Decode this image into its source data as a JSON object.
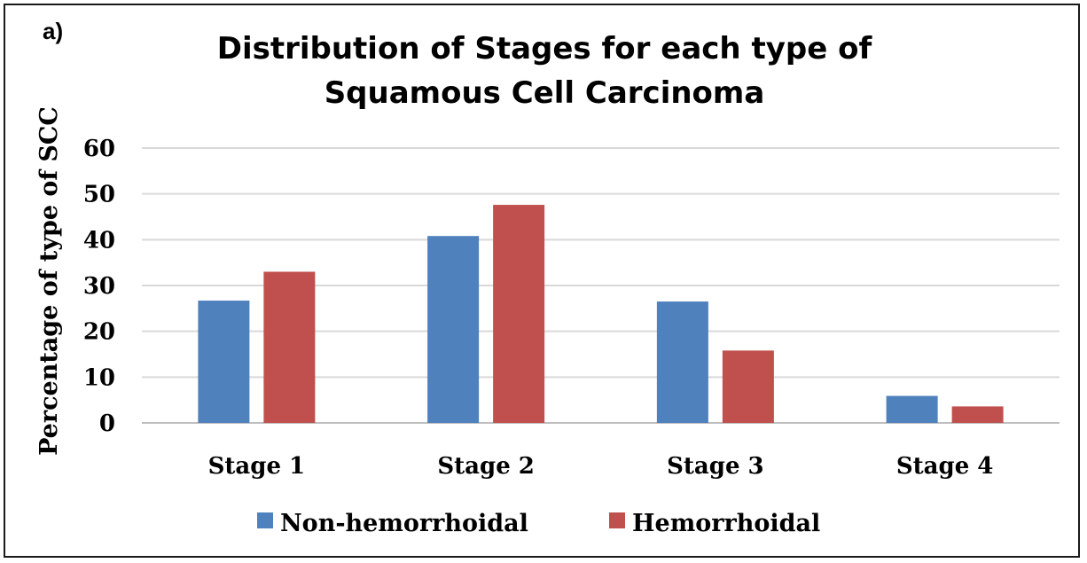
{
  "panel_label": "a)",
  "chart_data": {
    "type": "bar",
    "title": "Distribution of Stages for each type of Squamous Cell Carcinoma",
    "title_lines": [
      "Distribution of Stages for each type of",
      "Squamous Cell Carcinoma"
    ],
    "xlabel": "",
    "ylabel": "Percentage of type of SCC",
    "ylim": [
      0,
      60
    ],
    "yticks": [
      0,
      10,
      20,
      30,
      40,
      50,
      60
    ],
    "categories": [
      "Stage 1",
      "Stage 2",
      "Stage 3",
      "Stage 4"
    ],
    "series": [
      {
        "name": "Non-hemorrhoidal",
        "color": "#4f81bd",
        "values": [
          26.7,
          40.8,
          26.5,
          5.9
        ]
      },
      {
        "name": "Hemorrhoidal",
        "color": "#c0504d",
        "values": [
          33.0,
          47.6,
          15.8,
          3.6
        ]
      }
    ],
    "grid": true,
    "legend": "bottom"
  }
}
